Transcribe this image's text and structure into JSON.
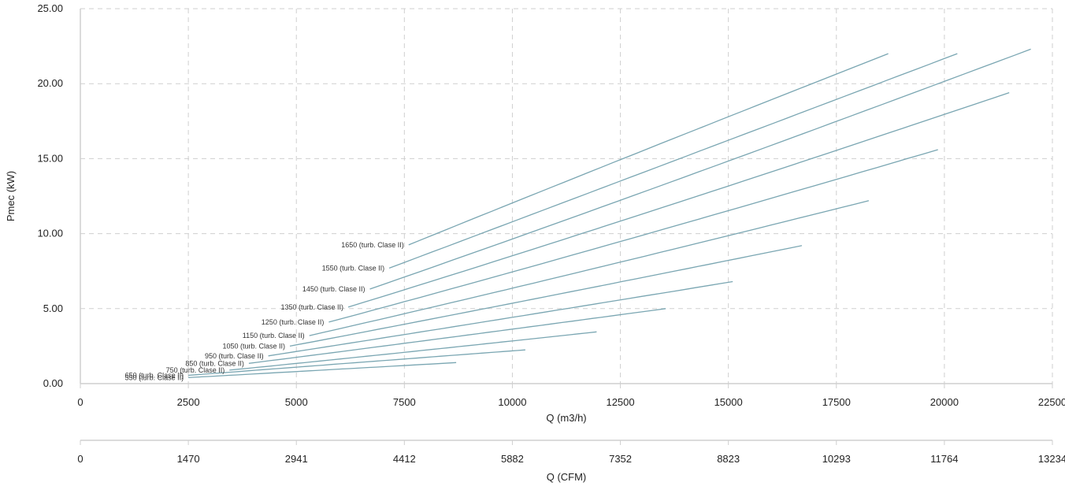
{
  "chart_data": {
    "type": "line",
    "title": "",
    "ylabel": "Pmec (kW)",
    "xlabel": "Q (m3/h)",
    "x2label": "Q (CFM)",
    "ylim": [
      0,
      25
    ],
    "xlim": [
      0,
      22500
    ],
    "y_ticks": [
      "0.00",
      "5.00",
      "10.00",
      "15.00",
      "20.00",
      "25.00"
    ],
    "x_ticks": [
      "0",
      "2500",
      "5000",
      "7500",
      "10000",
      "12500",
      "15000",
      "17500",
      "20000",
      "22500"
    ],
    "x2_ticks": [
      "0",
      "1470",
      "2941",
      "4412",
      "5882",
      "7352",
      "8823",
      "10293",
      "11764",
      "13234"
    ],
    "grid": true,
    "colors": {
      "curve": "#7aa6b2",
      "grid": "#cfcfcf"
    },
    "series": [
      {
        "label": "550 (turb. Clase II)",
        "x": [
          2500,
          8700
        ],
        "y": [
          0.4,
          1.4
        ]
      },
      {
        "label": "650 (turb. Clase II)",
        "x": [
          2500,
          10300
        ],
        "y": [
          0.55,
          2.25
        ]
      },
      {
        "label": "750 (turb. Clase II)",
        "x": [
          3450,
          11950
        ],
        "y": [
          0.9,
          3.45
        ]
      },
      {
        "label": "850 (turb. Clase II)",
        "x": [
          3900,
          13550
        ],
        "y": [
          1.35,
          5.0
        ]
      },
      {
        "label": "950 (turb. Clase II)",
        "x": [
          4350,
          15100
        ],
        "y": [
          1.85,
          6.8
        ]
      },
      {
        "label": "1050 (turb. Clase II)",
        "x": [
          4850,
          16700
        ],
        "y": [
          2.5,
          9.2
        ]
      },
      {
        "label": "1150 (turb. Clase II)",
        "x": [
          5300,
          18250
        ],
        "y": [
          3.2,
          12.2
        ]
      },
      {
        "label": "1250 (turb. Clase II)",
        "x": [
          5750,
          19850
        ],
        "y": [
          4.1,
          15.6
        ]
      },
      {
        "label": "1350 (turb. Clase II)",
        "x": [
          6200,
          21500
        ],
        "y": [
          5.1,
          19.4
        ]
      },
      {
        "label": "1450 (turb. Clase II)",
        "x": [
          6700,
          22000
        ],
        "y": [
          6.3,
          22.3
        ]
      },
      {
        "label": "1550 (turb. Clase II)",
        "x": [
          7150,
          20300
        ],
        "y": [
          7.7,
          22.0
        ]
      },
      {
        "label": "1650 (turb. Clase II)",
        "x": [
          7600,
          18700
        ],
        "y": [
          9.25,
          22.0
        ]
      }
    ]
  }
}
